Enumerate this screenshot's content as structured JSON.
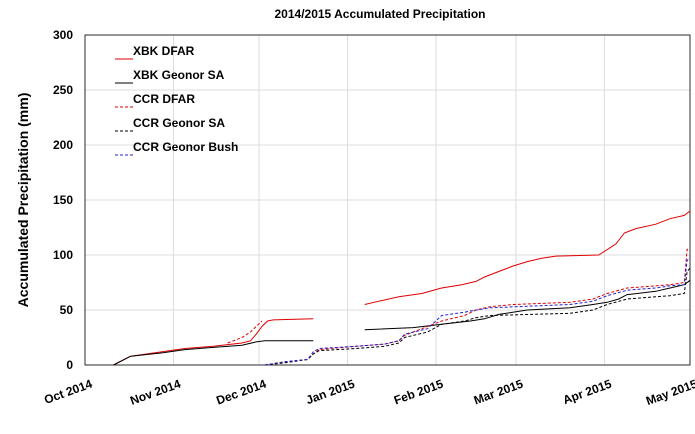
{
  "chart_data": {
    "type": "line",
    "title": "2014/2015 Accumulated Precipitation",
    "y_label": "Accumulated Precipitation (mm)",
    "xlim": [
      0,
      212
    ],
    "xticks": [
      {
        "value": 0,
        "label": "Oct 2014"
      },
      {
        "value": 31,
        "label": "Nov 2014"
      },
      {
        "value": 61,
        "label": "Dec 2014"
      },
      {
        "value": 92,
        "label": "Jan 2015"
      },
      {
        "value": 123,
        "label": "Feb 2015"
      },
      {
        "value": 151,
        "label": "Mar 2015"
      },
      {
        "value": 182,
        "label": "Apr 2015"
      },
      {
        "value": 212,
        "label": "May 2015"
      }
    ],
    "ylim": [
      0,
      300
    ],
    "yticks": [
      0,
      50,
      100,
      150,
      200,
      250,
      300
    ],
    "grid": true,
    "legend": "upper left",
    "series": [
      {
        "name": "XBK DFAR",
        "color": "#e00000",
        "dash": "solid",
        "x": [
          10,
          16,
          27,
          35,
          45,
          55,
          58,
          60,
          62,
          64,
          66,
          80,
          90,
          98,
          103,
          110,
          118,
          125,
          132,
          137,
          140,
          145,
          150,
          155,
          160,
          165,
          180,
          186,
          189,
          193,
          200,
          205,
          210,
          212
        ],
        "values": [
          0,
          8,
          12,
          15,
          17,
          20,
          22,
          28,
          35,
          40,
          41,
          42,
          null,
          55,
          58,
          62,
          65,
          70,
          73,
          76,
          80,
          85,
          90,
          94,
          97,
          99,
          100,
          110,
          120,
          124,
          128,
          133,
          136,
          140
        ]
      },
      {
        "name": "XBK Geonor SA",
        "color": "#000000",
        "dash": "solid",
        "x": [
          10,
          16,
          27,
          35,
          45,
          55,
          60,
          63,
          80,
          90,
          98,
          115,
          125,
          135,
          140,
          145,
          155,
          170,
          178,
          183,
          187,
          190,
          200,
          205,
          210,
          212
        ],
        "values": [
          0,
          8,
          11,
          14,
          16,
          18,
          21,
          22,
          22,
          null,
          32,
          34,
          37,
          40,
          42,
          46,
          50,
          52,
          55,
          57,
          60,
          64,
          67,
          70,
          73,
          77
        ]
      },
      {
        "name": "CCR DFAR",
        "color": "#e00000",
        "dash": "dashed",
        "x": [
          50,
          55,
          58,
          60,
          62,
          62.5,
          63,
          70,
          78,
          80,
          82,
          95,
          105,
          110,
          112,
          120,
          125,
          133,
          137,
          142,
          150,
          170,
          178,
          183,
          190,
          200,
          205,
          210,
          211,
          212
        ],
        "values": [
          20,
          25,
          30,
          35,
          40,
          null,
          0,
          3,
          5,
          10,
          14,
          17,
          19,
          22,
          27,
          35,
          40,
          45,
          50,
          53,
          55,
          57,
          60,
          65,
          70,
          72,
          73,
          75,
          105,
          106
        ]
      },
      {
        "name": "CCR Geonor SA",
        "color": "#000000",
        "dash": "dashed",
        "x": [
          63,
          70,
          78,
          80,
          82,
          95,
          105,
          110,
          112,
          120,
          125,
          133,
          137,
          142,
          170,
          178,
          183,
          190,
          200,
          205,
          210,
          211,
          212
        ],
        "values": [
          0,
          2,
          5,
          10,
          13,
          15,
          17,
          20,
          25,
          30,
          37,
          40,
          43,
          45,
          47,
          50,
          55,
          60,
          62,
          63,
          65,
          85,
          88
        ]
      },
      {
        "name": "CCR Geonor Bush",
        "color": "#2020d0",
        "dash": "dashed",
        "x": [
          63,
          70,
          78,
          80,
          82,
          95,
          105,
          110,
          112,
          120,
          125,
          133,
          137,
          142,
          170,
          178,
          183,
          190,
          200,
          205,
          210,
          211,
          212
        ],
        "values": [
          0,
          3,
          5,
          12,
          15,
          17,
          19,
          22,
          28,
          33,
          45,
          48,
          50,
          52,
          55,
          58,
          63,
          68,
          70,
          72,
          73,
          95,
          98
        ]
      }
    ]
  }
}
